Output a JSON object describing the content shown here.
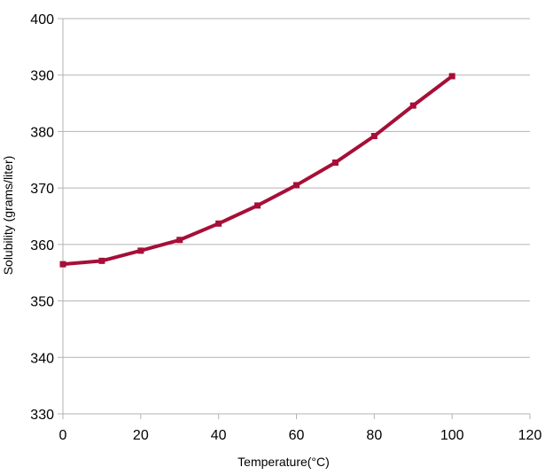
{
  "chart_data": {
    "type": "line",
    "title": "",
    "xlabel": "Temperature(°C)",
    "ylabel": "Solubility (grams/liter)",
    "xlim": [
      0,
      120
    ],
    "ylim": [
      330,
      400
    ],
    "x_ticks": [
      0,
      20,
      40,
      60,
      80,
      100,
      120
    ],
    "y_ticks": [
      330,
      340,
      350,
      360,
      370,
      380,
      390,
      400
    ],
    "grid": "horizontal",
    "legend": "none",
    "series": [
      {
        "color": "#a50f38",
        "x": [
          0,
          10,
          20,
          30,
          40,
          50,
          60,
          70,
          80,
          90,
          100
        ],
        "y": [
          356.5,
          357.1,
          358.9,
          360.8,
          363.7,
          366.9,
          370.5,
          374.5,
          379.2,
          384.6,
          389.8
        ]
      }
    ]
  }
}
